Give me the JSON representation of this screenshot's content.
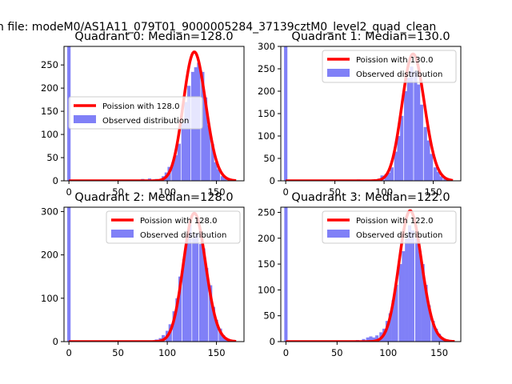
{
  "suptitle": "n file: modeM0/AS1A11_079T01_9000005284_37139cztM0_level2_quad_clean",
  "colors": {
    "histogram": "#8080f7",
    "poisson": "#ff0000"
  },
  "chart_data": [
    {
      "type": "bar",
      "title": "Quadrant 0: Median=128.0",
      "xlim": [
        -5,
        178
      ],
      "ylim": [
        0,
        290
      ],
      "xticks": [
        0,
        50,
        100,
        150
      ],
      "yticks": [
        0,
        50,
        100,
        150,
        200,
        250
      ],
      "legend": {
        "placement": "center-left",
        "entries": [
          "Poission with 128.0",
          "Observed distribution"
        ]
      },
      "bin_width": 3.4,
      "histogram": [
        {
          "x": 0,
          "y": 290
        },
        {
          "x": 71,
          "y": 2
        },
        {
          "x": 75,
          "y": 4
        },
        {
          "x": 82,
          "y": 5
        },
        {
          "x": 89,
          "y": 4
        },
        {
          "x": 96,
          "y": 10
        },
        {
          "x": 99,
          "y": 18
        },
        {
          "x": 102,
          "y": 30
        },
        {
          "x": 106,
          "y": 40
        },
        {
          "x": 109,
          "y": 55
        },
        {
          "x": 112,
          "y": 80
        },
        {
          "x": 116,
          "y": 125
        },
        {
          "x": 119,
          "y": 170
        },
        {
          "x": 122,
          "y": 205
        },
        {
          "x": 126,
          "y": 235
        },
        {
          "x": 129,
          "y": 245
        },
        {
          "x": 132,
          "y": 255
        },
        {
          "x": 136,
          "y": 235
        },
        {
          "x": 139,
          "y": 180
        },
        {
          "x": 142,
          "y": 120
        },
        {
          "x": 146,
          "y": 80
        },
        {
          "x": 149,
          "y": 40
        },
        {
          "x": 152,
          "y": 25
        },
        {
          "x": 156,
          "y": 10
        },
        {
          "x": 159,
          "y": 5
        },
        {
          "x": 163,
          "y": 3
        },
        {
          "x": 166,
          "y": 1
        }
      ],
      "poisson": {
        "lambda": 128,
        "peak": 278,
        "x_range": [
          0,
          170
        ]
      }
    },
    {
      "type": "bar",
      "title": "Quadrant 1: Median=130.0",
      "xlim": [
        -5,
        178
      ],
      "ylim": [
        0,
        300
      ],
      "xticks": [
        0,
        50,
        100,
        150
      ],
      "yticks": [
        0,
        50,
        100,
        150,
        200,
        250,
        300
      ],
      "legend": {
        "placement": "top-right",
        "entries": [
          "Poission with 130.0",
          "Observed distribution"
        ]
      },
      "bin_width": 3.4,
      "histogram": [
        {
          "x": 0,
          "y": 300
        },
        {
          "x": 74,
          "y": 3
        },
        {
          "x": 85,
          "y": 2
        },
        {
          "x": 95,
          "y": 5
        },
        {
          "x": 98,
          "y": 12
        },
        {
          "x": 102,
          "y": 15
        },
        {
          "x": 105,
          "y": 18
        },
        {
          "x": 108,
          "y": 30
        },
        {
          "x": 112,
          "y": 65
        },
        {
          "x": 115,
          "y": 100
        },
        {
          "x": 118,
          "y": 145
        },
        {
          "x": 122,
          "y": 200
        },
        {
          "x": 125,
          "y": 230
        },
        {
          "x": 128,
          "y": 255
        },
        {
          "x": 132,
          "y": 245
        },
        {
          "x": 135,
          "y": 215
        },
        {
          "x": 138,
          "y": 170
        },
        {
          "x": 142,
          "y": 120
        },
        {
          "x": 145,
          "y": 90
        },
        {
          "x": 148,
          "y": 60
        },
        {
          "x": 152,
          "y": 30
        },
        {
          "x": 155,
          "y": 20
        },
        {
          "x": 158,
          "y": 10
        },
        {
          "x": 162,
          "y": 5
        },
        {
          "x": 165,
          "y": 2
        }
      ],
      "poisson": {
        "lambda": 130,
        "peak": 283,
        "x_range": [
          0,
          170
        ]
      }
    },
    {
      "type": "bar",
      "title": "Quadrant 2: Median=128.0",
      "xlim": [
        -5,
        178
      ],
      "ylim": [
        0,
        310
      ],
      "xticks": [
        0,
        50,
        100,
        150
      ],
      "yticks": [
        0,
        100,
        200,
        300
      ],
      "legend": {
        "placement": "top-right",
        "entries": [
          "Poission with 128.0",
          "Observed distribution"
        ]
      },
      "bin_width": 3.4,
      "histogram": [
        {
          "x": 0,
          "y": 310
        },
        {
          "x": 89,
          "y": 5
        },
        {
          "x": 93,
          "y": 8
        },
        {
          "x": 96,
          "y": 15
        },
        {
          "x": 100,
          "y": 25
        },
        {
          "x": 103,
          "y": 40
        },
        {
          "x": 107,
          "y": 70
        },
        {
          "x": 110,
          "y": 100
        },
        {
          "x": 113,
          "y": 150
        },
        {
          "x": 117,
          "y": 190
        },
        {
          "x": 120,
          "y": 240
        },
        {
          "x": 123,
          "y": 270
        },
        {
          "x": 127,
          "y": 240
        },
        {
          "x": 130,
          "y": 250
        },
        {
          "x": 134,
          "y": 225
        },
        {
          "x": 137,
          "y": 215
        },
        {
          "x": 140,
          "y": 170
        },
        {
          "x": 144,
          "y": 130
        },
        {
          "x": 147,
          "y": 80
        },
        {
          "x": 150,
          "y": 50
        },
        {
          "x": 154,
          "y": 30
        },
        {
          "x": 157,
          "y": 15
        },
        {
          "x": 160,
          "y": 8
        },
        {
          "x": 164,
          "y": 4
        },
        {
          "x": 167,
          "y": 2
        }
      ],
      "poisson": {
        "lambda": 128,
        "peak": 296,
        "x_range": [
          0,
          170
        ]
      }
    },
    {
      "type": "bar",
      "title": "Quadrant 3: Median=122.0",
      "xlim": [
        -5,
        171
      ],
      "ylim": [
        0,
        260
      ],
      "xticks": [
        0,
        50,
        100,
        150
      ],
      "yticks": [
        0,
        50,
        100,
        150,
        200,
        250
      ],
      "legend": {
        "placement": "top-right",
        "entries": [
          "Poission with 122.0",
          "Observed distribution"
        ]
      },
      "bin_width": 3.2,
      "histogram": [
        {
          "x": 0,
          "y": 260
        },
        {
          "x": 64,
          "y": 2
        },
        {
          "x": 70,
          "y": 3
        },
        {
          "x": 76,
          "y": 5
        },
        {
          "x": 80,
          "y": 8
        },
        {
          "x": 83,
          "y": 10
        },
        {
          "x": 86,
          "y": 8
        },
        {
          "x": 89,
          "y": 12
        },
        {
          "x": 93,
          "y": 18
        },
        {
          "x": 96,
          "y": 25
        },
        {
          "x": 99,
          "y": 40
        },
        {
          "x": 102,
          "y": 55
        },
        {
          "x": 105,
          "y": 80
        },
        {
          "x": 108,
          "y": 110
        },
        {
          "x": 112,
          "y": 150
        },
        {
          "x": 115,
          "y": 175
        },
        {
          "x": 118,
          "y": 200
        },
        {
          "x": 121,
          "y": 225
        },
        {
          "x": 124,
          "y": 215
        },
        {
          "x": 128,
          "y": 200
        },
        {
          "x": 131,
          "y": 175
        },
        {
          "x": 134,
          "y": 150
        },
        {
          "x": 137,
          "y": 110
        },
        {
          "x": 140,
          "y": 70
        },
        {
          "x": 144,
          "y": 40
        },
        {
          "x": 147,
          "y": 25
        },
        {
          "x": 150,
          "y": 15
        },
        {
          "x": 153,
          "y": 8
        },
        {
          "x": 156,
          "y": 4
        },
        {
          "x": 160,
          "y": 2
        }
      ],
      "poisson": {
        "lambda": 122,
        "peak": 253,
        "x_range": [
          0,
          165
        ]
      }
    }
  ]
}
